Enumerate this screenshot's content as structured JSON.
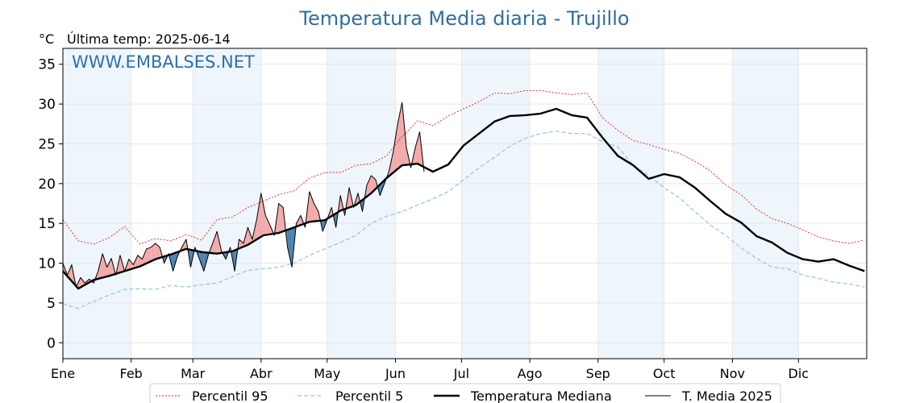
{
  "chart_data": {
    "type": "line",
    "title": "Temperatura Media diaria - Trujillo",
    "unit_label": "°C",
    "last_temp_label": "Última temp: 2025-06-14",
    "watermark": "WWW.EMBALSES.NET",
    "ylim": [
      -2,
      37
    ],
    "yticks": [
      0,
      5,
      10,
      15,
      20,
      25,
      30,
      35
    ],
    "months": [
      "Ene",
      "Feb",
      "Mar",
      "Abr",
      "May",
      "Jun",
      "Jul",
      "Ago",
      "Sep",
      "Oct",
      "Nov",
      "Dic"
    ],
    "month_start_days": [
      1,
      32,
      60,
      91,
      121,
      152,
      182,
      213,
      244,
      274,
      305,
      335
    ],
    "xlim": [
      1,
      366
    ],
    "grid": true,
    "legend_placement": "bottom",
    "colors": {
      "p95": "#e8201c",
      "p5": "#8ec6e0",
      "median": "#000000",
      "current": "#000000",
      "above": "#f2aaaa",
      "below": "#2f6fa5",
      "band": "#eef5fb"
    },
    "series": [
      {
        "name": "Percentil 95",
        "key": "p95",
        "x": [
          1,
          8,
          15,
          22,
          29,
          36,
          43,
          50,
          57,
          64,
          71,
          78,
          85,
          92,
          99,
          106,
          113,
          120,
          127,
          134,
          141,
          148,
          155,
          162,
          169,
          176,
          183,
          190,
          197,
          204,
          211,
          218,
          225,
          232,
          239,
          246,
          253,
          260,
          267,
          274,
          281,
          288,
          295,
          302,
          309,
          316,
          323,
          330,
          337,
          344,
          351,
          358,
          365
        ],
        "values": [
          15.5,
          12.8,
          12.4,
          13.2,
          14.6,
          12.4,
          13.1,
          12.8,
          13.6,
          12.9,
          15.5,
          15.8,
          17.0,
          17.8,
          18.6,
          19.1,
          20.7,
          21.4,
          21.4,
          22.3,
          22.5,
          23.5,
          25.9,
          27.9,
          27.3,
          28.5,
          29.4,
          30.3,
          31.4,
          31.3,
          31.7,
          31.7,
          31.4,
          31.2,
          31.4,
          28.3,
          26.7,
          25.4,
          24.9,
          24.3,
          23.8,
          22.8,
          21.6,
          19.8,
          18.6,
          16.8,
          15.6,
          15.0,
          14.2,
          13.3,
          12.8,
          12.5,
          12.9
        ]
      },
      {
        "name": "Percentil 5",
        "key": "p5",
        "x": [
          1,
          8,
          15,
          22,
          29,
          36,
          43,
          50,
          57,
          64,
          71,
          78,
          85,
          92,
          99,
          106,
          113,
          120,
          127,
          134,
          141,
          148,
          155,
          162,
          169,
          176,
          183,
          190,
          197,
          204,
          211,
          218,
          225,
          232,
          239,
          246,
          253,
          260,
          267,
          274,
          281,
          288,
          295,
          302,
          309,
          316,
          323,
          330,
          337,
          344,
          351,
          358,
          365
        ],
        "values": [
          4.9,
          4.3,
          5.2,
          6.0,
          6.7,
          6.8,
          6.7,
          7.2,
          7.0,
          7.3,
          7.5,
          8.3,
          9.1,
          9.3,
          9.5,
          10.0,
          11.0,
          11.8,
          12.6,
          13.5,
          15.0,
          15.9,
          16.5,
          17.3,
          18.1,
          19.0,
          20.5,
          22.0,
          23.3,
          24.7,
          25.7,
          26.3,
          26.6,
          26.3,
          26.3,
          25.3,
          24.6,
          22.3,
          21.0,
          19.5,
          18.2,
          16.5,
          14.8,
          13.5,
          11.9,
          10.6,
          9.5,
          9.3,
          8.5,
          8.1,
          7.6,
          7.4,
          7.0
        ]
      },
      {
        "name": "Temperatura Mediana",
        "key": "median",
        "x": [
          1,
          8,
          15,
          22,
          29,
          36,
          43,
          50,
          57,
          64,
          71,
          78,
          85,
          92,
          99,
          106,
          113,
          120,
          127,
          134,
          141,
          148,
          155,
          162,
          169,
          176,
          183,
          190,
          197,
          204,
          211,
          218,
          225,
          232,
          239,
          246,
          253,
          260,
          267,
          274,
          281,
          288,
          295,
          302,
          309,
          316,
          323,
          330,
          337,
          344,
          351,
          358,
          365
        ],
        "values": [
          9.0,
          6.8,
          7.9,
          8.4,
          9.0,
          9.6,
          10.5,
          11.1,
          11.8,
          11.4,
          11.2,
          11.5,
          12.3,
          13.5,
          13.8,
          14.5,
          15.2,
          15.4,
          16.6,
          17.3,
          18.8,
          20.7,
          22.3,
          22.5,
          21.5,
          22.4,
          24.8,
          26.3,
          27.8,
          28.5,
          28.6,
          28.8,
          29.4,
          28.6,
          28.3,
          25.8,
          23.5,
          22.3,
          20.6,
          21.2,
          20.8,
          19.5,
          17.8,
          16.2,
          15.1,
          13.4,
          12.6,
          11.3,
          10.5,
          10.2,
          10.5,
          9.7,
          9.0
        ]
      },
      {
        "name": "T. Media 2025",
        "key": "current",
        "x": [
          1,
          3,
          5,
          7,
          9,
          11,
          13,
          15,
          17,
          19,
          21,
          23,
          25,
          27,
          29,
          31,
          33,
          35,
          37,
          39,
          41,
          43,
          45,
          47,
          49,
          51,
          53,
          55,
          57,
          59,
          61,
          63,
          65,
          67,
          69,
          71,
          73,
          75,
          77,
          79,
          81,
          83,
          85,
          87,
          89,
          91,
          93,
          95,
          97,
          99,
          101,
          103,
          105,
          107,
          109,
          111,
          113,
          115,
          117,
          119,
          121,
          123,
          125,
          127,
          129,
          131,
          133,
          135,
          137,
          139,
          141,
          143,
          145,
          147,
          149,
          151,
          153,
          155,
          157,
          159,
          161,
          163,
          165
        ],
        "values": [
          10.0,
          8.5,
          9.8,
          7.0,
          8.2,
          7.5,
          8.0,
          7.5,
          9.0,
          11.2,
          9.5,
          10.6,
          8.5,
          11.0,
          9.0,
          10.5,
          9.8,
          11.0,
          10.5,
          11.8,
          12.0,
          12.5,
          12.0,
          10.0,
          11.2,
          9.0,
          10.8,
          12.0,
          13.0,
          9.5,
          12.0,
          10.5,
          9.0,
          11.0,
          12.5,
          14.0,
          11.5,
          10.5,
          12.0,
          9.0,
          13.0,
          12.5,
          14.5,
          13.0,
          15.5,
          18.8,
          16.0,
          14.8,
          13.5,
          17.5,
          17.0,
          12.0,
          9.5,
          15.0,
          16.0,
          14.5,
          19.0,
          17.5,
          16.5,
          14.0,
          15.5,
          17.0,
          14.5,
          18.5,
          16.0,
          19.5,
          17.0,
          18.8,
          16.5,
          19.8,
          21.0,
          20.5,
          18.5,
          20.0,
          21.5,
          24.0,
          27.5,
          30.2,
          24.5,
          22.0,
          24.5,
          26.5,
          21.5
        ]
      }
    ]
  }
}
